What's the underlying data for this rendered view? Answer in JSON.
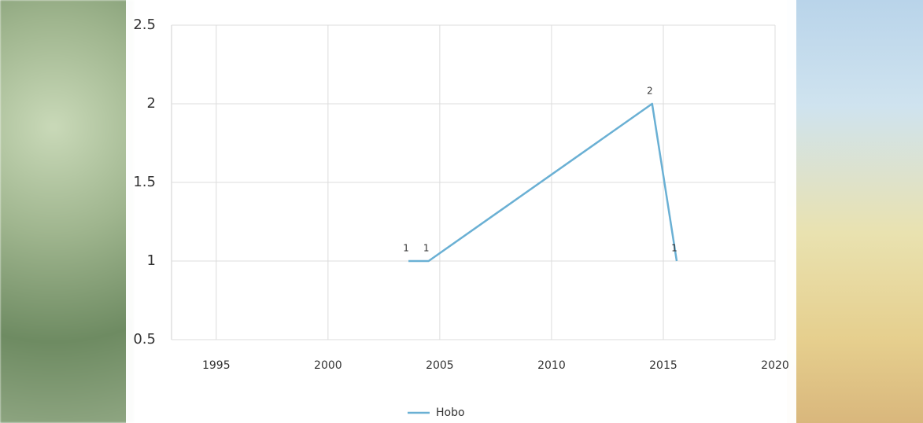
{
  "chart_data": {
    "type": "line",
    "x": [
      2003.6,
      2004.5,
      2014.5,
      2015.6
    ],
    "series": [
      {
        "name": "Hobo",
        "color": "#6ab0d4",
        "values": [
          1,
          1,
          2,
          1
        ]
      }
    ],
    "xlim": [
      1993,
      2020
    ],
    "xticks": [
      1995,
      2000,
      2005,
      2010,
      2015,
      2020
    ],
    "ylim": [
      0.5,
      2.5
    ],
    "yticks": [
      0.5,
      1,
      1.5,
      2,
      2.5
    ],
    "grid": true,
    "data_labels": true,
    "legend": "bottom"
  }
}
